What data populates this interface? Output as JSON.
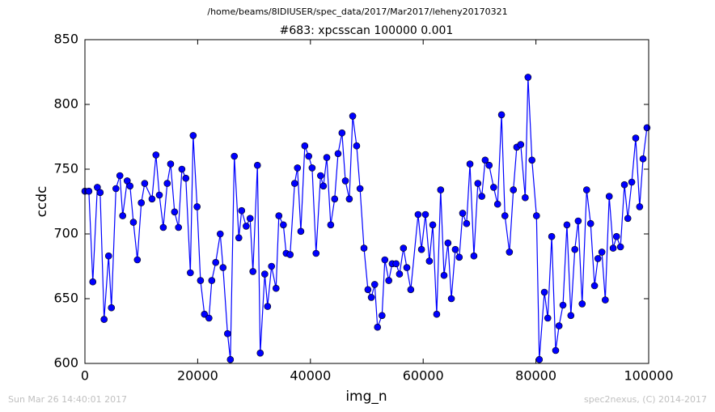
{
  "chart_data": {
    "type": "line",
    "suptitle": "/home/beams/8IDIUSER/spec_data/2017/Mar2017/leheny20170321",
    "title": "#683: xpcsscan 100000 0.001",
    "xlabel": "img_n",
    "ylabel": "ccdc",
    "footer_left": "Sun Mar 26 14:40:01 2017",
    "footer_right": "spec2nexus, (C) 2014-2017",
    "xlim": [
      0,
      100000
    ],
    "xticks": [
      0,
      20000,
      40000,
      60000,
      80000,
      100000
    ],
    "ylim": [
      600,
      850
    ],
    "yticks": [
      600,
      650,
      700,
      750,
      800,
      850
    ],
    "grid": false,
    "series": [
      {
        "name": "ccdc",
        "color": "#0000ff",
        "x": [
          0,
          700,
          1400,
          2200,
          2700,
          3400,
          4200,
          4700,
          5500,
          6200,
          6700,
          7500,
          8000,
          8600,
          9300,
          10000,
          10600,
          11900,
          12600,
          13200,
          13900,
          14600,
          15200,
          15900,
          16600,
          17200,
          17900,
          18700,
          19200,
          19900,
          20500,
          21200,
          22000,
          22500,
          23200,
          24000,
          24500,
          25300,
          25800,
          26500,
          27300,
          27800,
          28600,
          29300,
          29800,
          30600,
          31100,
          31900,
          32400,
          33100,
          33900,
          34400,
          35200,
          35700,
          36400,
          37200,
          37700,
          38300,
          39000,
          39700,
          40300,
          41000,
          41800,
          42300,
          42900,
          43600,
          44300,
          44900,
          45600,
          46200,
          46900,
          47500,
          48200,
          48800,
          49500,
          50200,
          50800,
          51400,
          51900,
          52700,
          53200,
          53900,
          54500,
          55200,
          55800,
          56500,
          57100,
          57800,
          59100,
          59700,
          60400,
          61100,
          61700,
          62400,
          63100,
          63700,
          64400,
          65000,
          65700,
          66400,
          67000,
          67700,
          68300,
          69000,
          69700,
          70400,
          71000,
          71700,
          72500,
          73200,
          73900,
          74500,
          75300,
          76000,
          76600,
          77300,
          78100,
          78600,
          79300,
          80100,
          80600,
          81500,
          82100,
          82800,
          83500,
          84100,
          84800,
          85500,
          86200,
          86900,
          87500,
          88200,
          89000,
          89700,
          90400,
          91000,
          91700,
          92300,
          93000,
          93700,
          94300,
          95000,
          95700,
          96300,
          97000,
          97700,
          98400,
          99000,
          99700
        ],
        "values": [
          733,
          733,
          663,
          736,
          732,
          634,
          683,
          643,
          735,
          745,
          714,
          741,
          737,
          709,
          680,
          724,
          739,
          727,
          761,
          730,
          705,
          739,
          754,
          717,
          705,
          750,
          743,
          670,
          776,
          721,
          664,
          638,
          635,
          664,
          678,
          700,
          674,
          623,
          603,
          760,
          697,
          718,
          706,
          712,
          671,
          753,
          608,
          669,
          644,
          675,
          658,
          714,
          707,
          685,
          684,
          739,
          751,
          702,
          768,
          760,
          751,
          685,
          745,
          737,
          759,
          707,
          727,
          762,
          778,
          741,
          727,
          791,
          768,
          735,
          689,
          657,
          651,
          661,
          628,
          637,
          680,
          664,
          677,
          677,
          669,
          689,
          674,
          657,
          715,
          688,
          715,
          679,
          707,
          638,
          734,
          668,
          693,
          650,
          688,
          682,
          716,
          708,
          754,
          683,
          739,
          729,
          757,
          753,
          736,
          723,
          792,
          714,
          686,
          734,
          767,
          769,
          728,
          821,
          757,
          714,
          603,
          655,
          635,
          698,
          610,
          629,
          645,
          707,
          637,
          688,
          710,
          646,
          734,
          708,
          660,
          681,
          686,
          649,
          729,
          689,
          698,
          690,
          738,
          712,
          740,
          774,
          721,
          758,
          782
        ]
      }
    ]
  }
}
